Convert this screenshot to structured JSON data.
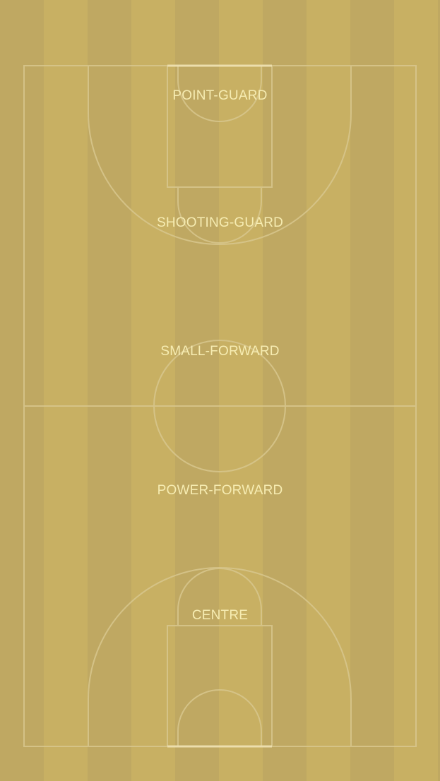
{
  "colors": {
    "stripe_light": "#c8b063",
    "stripe_dark": "#bfa862",
    "court_line": "#d8c78e",
    "label_text": "#f6ecb2"
  },
  "positions": [
    {
      "id": "point-guard",
      "label": "POINT-GUARD"
    },
    {
      "id": "shooting-guard",
      "label": "SHOOTING-GUARD"
    },
    {
      "id": "small-forward",
      "label": "SMALL-FORWARD"
    },
    {
      "id": "power-forward",
      "label": "POWER-FORWARD"
    },
    {
      "id": "centre",
      "label": "CENTRE"
    }
  ]
}
